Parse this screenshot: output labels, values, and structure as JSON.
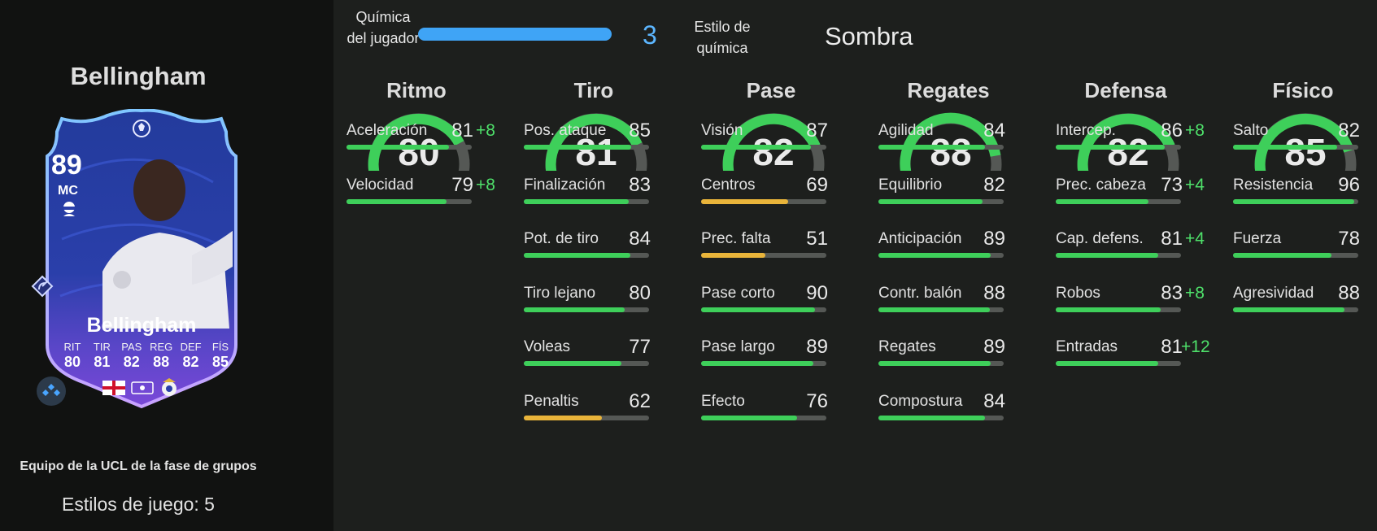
{
  "player": {
    "name": "Bellingham",
    "card": {
      "rating": "89",
      "position": "MC",
      "name": "Bellingham",
      "stat_labels": [
        "RIT",
        "TIR",
        "PAS",
        "REG",
        "DEF",
        "FÍS"
      ],
      "stat_values": [
        "80",
        "81",
        "82",
        "88",
        "82",
        "85"
      ]
    },
    "team_label": "Equipo de la UCL de la fase de grupos",
    "playstyles_label": "Estilos de juego: 5"
  },
  "chemistry": {
    "label": "Química del jugador",
    "value": "3",
    "fraction": 1.0,
    "style_label": "Estilo de química",
    "style_value": "Sombra"
  },
  "colors": {
    "accent_blue": "#3fa4f6",
    "high": "#3ecf5a",
    "mid": "#e9b43a",
    "boost": "#4ee06a"
  },
  "categories": [
    {
      "title": "Ritmo",
      "value": 80,
      "attributes": [
        {
          "name": "Aceleración",
          "value": 81,
          "boost": "+8"
        },
        {
          "name": "Velocidad",
          "value": 79,
          "boost": "+8"
        }
      ]
    },
    {
      "title": "Tiro",
      "value": 81,
      "attributes": [
        {
          "name": "Pos. ataque",
          "value": 85,
          "boost": ""
        },
        {
          "name": "Finalización",
          "value": 83,
          "boost": ""
        },
        {
          "name": "Pot. de tiro",
          "value": 84,
          "boost": ""
        },
        {
          "name": "Tiro lejano",
          "value": 80,
          "boost": ""
        },
        {
          "name": "Voleas",
          "value": 77,
          "boost": ""
        },
        {
          "name": "Penaltis",
          "value": 62,
          "boost": ""
        }
      ]
    },
    {
      "title": "Pase",
      "value": 82,
      "attributes": [
        {
          "name": "Visión",
          "value": 87,
          "boost": ""
        },
        {
          "name": "Centros",
          "value": 69,
          "boost": ""
        },
        {
          "name": "Prec. falta",
          "value": 51,
          "boost": ""
        },
        {
          "name": "Pase corto",
          "value": 90,
          "boost": ""
        },
        {
          "name": "Pase largo",
          "value": 89,
          "boost": ""
        },
        {
          "name": "Efecto",
          "value": 76,
          "boost": ""
        }
      ]
    },
    {
      "title": "Regates",
      "value": 88,
      "attributes": [
        {
          "name": "Agilidad",
          "value": 84,
          "boost": ""
        },
        {
          "name": "Equilibrio",
          "value": 82,
          "boost": ""
        },
        {
          "name": "Anticipación",
          "value": 89,
          "boost": ""
        },
        {
          "name": "Contr. balón",
          "value": 88,
          "boost": ""
        },
        {
          "name": "Regates",
          "value": 89,
          "boost": ""
        },
        {
          "name": "Compostura",
          "value": 84,
          "boost": ""
        }
      ]
    },
    {
      "title": "Defensa",
      "value": 82,
      "attributes": [
        {
          "name": "Intercep.",
          "value": 86,
          "boost": "+8"
        },
        {
          "name": "Prec. cabeza",
          "value": 73,
          "boost": "+4"
        },
        {
          "name": "Cap. defens.",
          "value": 81,
          "boost": "+4"
        },
        {
          "name": "Robos",
          "value": 83,
          "boost": "+8"
        },
        {
          "name": "Entradas",
          "value": 81,
          "boost": "+12"
        }
      ]
    },
    {
      "title": "Físico",
      "value": 85,
      "attributes": [
        {
          "name": "Salto",
          "value": 82,
          "boost": ""
        },
        {
          "name": "Resistencia",
          "value": 96,
          "boost": ""
        },
        {
          "name": "Fuerza",
          "value": 78,
          "boost": ""
        },
        {
          "name": "Agresividad",
          "value": 88,
          "boost": ""
        }
      ]
    }
  ]
}
